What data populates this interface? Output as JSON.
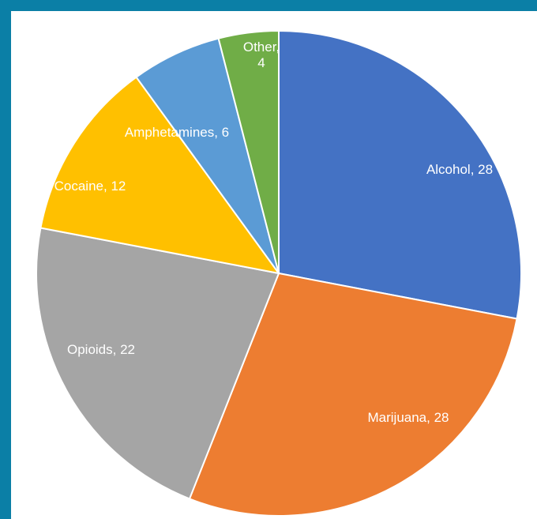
{
  "chart_data": {
    "type": "pie",
    "title": "",
    "categories": [
      "Alcohol",
      "Marijuana",
      "Opioids",
      "Cocaine",
      "Amphetamines",
      "Other"
    ],
    "values": [
      28,
      28,
      22,
      12,
      6,
      4
    ],
    "labels": [
      "Alcohol, 28",
      "Marijuana, 28",
      "Opioids, 22",
      "Cocaine, 12",
      "Amphetamines, 6",
      "Other, 4"
    ],
    "label_lines": [
      [
        "Alcohol, 28"
      ],
      [
        "Marijuana, 28"
      ],
      [
        "Opioids, 22"
      ],
      [
        "Cocaine, 12"
      ],
      [
        "Amphetamines, 6"
      ],
      [
        "Other,",
        "4"
      ]
    ],
    "colors": [
      "#4472c4",
      "#ed7d31",
      "#a5a5a5",
      "#ffc000",
      "#5b9bd5",
      "#70ad47"
    ],
    "start_angle": "12 o'clock",
    "direction": "clockwise",
    "legend": "none",
    "data_labels": "inside"
  }
}
